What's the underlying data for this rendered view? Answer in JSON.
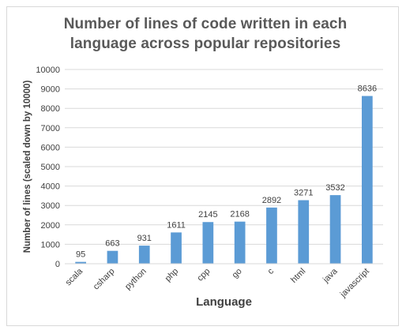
{
  "chart_data": {
    "type": "bar",
    "title": "Number of lines of code written in each language across popular repositories",
    "xlabel": "Language",
    "ylabel": "Number of lines (scaled down by 10000)",
    "categories": [
      "scala",
      "csharp",
      "python",
      "php",
      "cpp",
      "go",
      "c",
      "html",
      "java",
      "javascript"
    ],
    "values": [
      95,
      663,
      931,
      1611,
      2145,
      2168,
      2892,
      3271,
      3532,
      8636
    ],
    "ylim": [
      0,
      10000
    ],
    "yticks": [
      "0",
      "1000",
      "2000",
      "3000",
      "4000",
      "5000",
      "6000",
      "7000",
      "8000",
      "9000",
      "10000"
    ],
    "grid": true,
    "legend": "none",
    "data_labels": true,
    "colors": {
      "bar": "#5b9bd5",
      "grid": "#d9d9d9",
      "text": "#404040",
      "title": "#595959"
    }
  }
}
